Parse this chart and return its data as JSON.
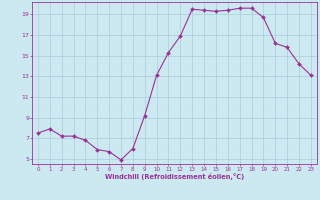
{
  "x": [
    0,
    1,
    2,
    3,
    4,
    5,
    6,
    7,
    8,
    9,
    10,
    11,
    12,
    13,
    14,
    15,
    16,
    17,
    18,
    19,
    20,
    21,
    22,
    23
  ],
  "y": [
    7.5,
    7.9,
    7.2,
    7.2,
    6.8,
    5.9,
    5.7,
    4.9,
    6.0,
    9.2,
    13.1,
    15.3,
    16.9,
    19.5,
    19.4,
    19.3,
    19.4,
    19.6,
    19.6,
    18.7,
    16.2,
    15.8,
    14.2,
    13.1
  ],
  "line_color": "#993399",
  "marker": "D",
  "marker_size": 2,
  "bg_color": "#cce8f0",
  "grid_color": "#aaccdd",
  "xlabel": "Windchill (Refroidissement éolien,°C)",
  "xlabel_color": "#993399",
  "tick_color": "#993399",
  "axis_color": "#993399",
  "yticks": [
    5,
    7,
    9,
    11,
    13,
    15,
    17,
    19
  ],
  "xticks": [
    0,
    1,
    2,
    3,
    4,
    5,
    6,
    7,
    8,
    9,
    10,
    11,
    12,
    13,
    14,
    15,
    16,
    17,
    18,
    19,
    20,
    21,
    22,
    23
  ],
  "ylim": [
    4.5,
    20.2
  ],
  "xlim": [
    -0.5,
    23.5
  ]
}
